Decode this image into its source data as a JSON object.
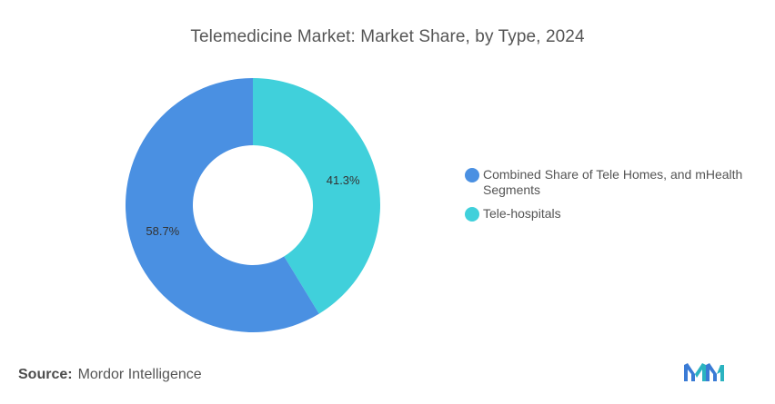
{
  "header": {
    "title": "Telemedicine Market: Market Share, by Type, 2024"
  },
  "chart_data": {
    "type": "pie",
    "title": "Telemedicine Market: Market Share, by Type, 2024",
    "donut": true,
    "legend_position": "right",
    "slices": [
      {
        "name": "Tele-hospitals",
        "value": 41.3,
        "label": "41.3%",
        "color": "#40d0db"
      },
      {
        "name": "Combined Share of Tele Homes, and mHealth Segments",
        "value": 58.7,
        "label": "58.7%",
        "color": "#4a90e2"
      }
    ],
    "legend": [
      {
        "label": "Combined Share of Tele Homes, and mHealth Segments",
        "color": "#4a90e2"
      },
      {
        "label": "Tele-hospitals",
        "color": "#40d0db"
      }
    ]
  },
  "footer": {
    "source_key": "Source:",
    "source_value": "Mordor Intelligence",
    "logo_icon": "mordor-intelligence-logo-icon"
  }
}
